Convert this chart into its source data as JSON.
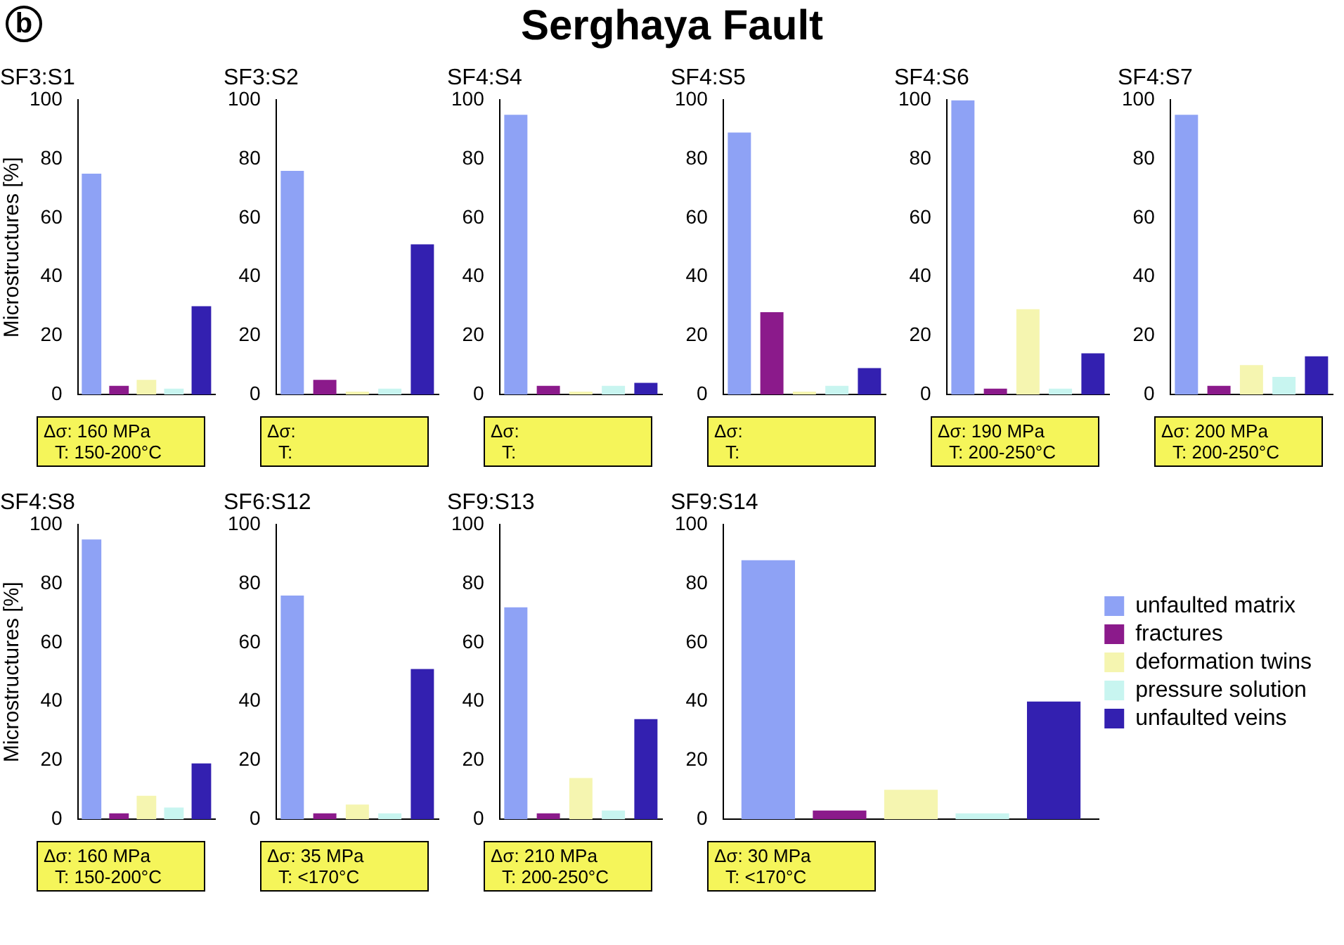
{
  "chart_data": [
    {
      "type": "other",
      "title": "Serghaya Fault",
      "annotations": [
        "b"
      ]
    },
    {
      "type": "bar",
      "title": "SF3:S1",
      "ylabel": "Microstructures [%]",
      "categories": [
        null,
        null,
        null,
        null,
        null
      ],
      "values": [
        75,
        3,
        5,
        2,
        30
      ],
      "colors": [
        "#8ea2f5",
        "#8b1a8b",
        "#f5f5b0",
        "#c8f5f0",
        "#3320b0"
      ],
      "ylim": [
        0,
        100
      ],
      "yticks": [
        0,
        20,
        40,
        60,
        80,
        100
      ],
      "annotations": [
        "Δσ: 160 MPa",
        "T: 150-200°C"
      ]
    },
    {
      "type": "bar",
      "title": "SF3:S2",
      "categories": [
        null,
        null,
        null,
        null,
        null
      ],
      "values": [
        76,
        5,
        1,
        2,
        51
      ],
      "colors": [
        "#8ea2f5",
        "#8b1a8b",
        "#f5f5b0",
        "#c8f5f0",
        "#3320b0"
      ],
      "ylim": [
        0,
        100
      ],
      "yticks": [
        0,
        20,
        40,
        60,
        80,
        100
      ],
      "annotations": [
        "Δσ:",
        "T:"
      ]
    },
    {
      "type": "bar",
      "title": "SF4:S4",
      "categories": [
        null,
        null,
        null,
        null,
        null
      ],
      "values": [
        95,
        3,
        1,
        3,
        4
      ],
      "colors": [
        "#8ea2f5",
        "#8b1a8b",
        "#f5f5b0",
        "#c8f5f0",
        "#3320b0"
      ],
      "ylim": [
        0,
        100
      ],
      "yticks": [
        0,
        20,
        40,
        60,
        80,
        100
      ],
      "annotations": [
        "Δσ:",
        "T:"
      ]
    },
    {
      "type": "bar",
      "title": "SF4:S5",
      "categories": [
        null,
        null,
        null,
        null,
        null
      ],
      "values": [
        89,
        28,
        1,
        3,
        9
      ],
      "colors": [
        "#8ea2f5",
        "#8b1a8b",
        "#f5f5b0",
        "#c8f5f0",
        "#3320b0"
      ],
      "ylim": [
        0,
        100
      ],
      "yticks": [
        0,
        20,
        40,
        60,
        80,
        100
      ],
      "annotations": [
        "Δσ:",
        "T:"
      ]
    },
    {
      "type": "bar",
      "title": "SF4:S6",
      "categories": [
        null,
        null,
        null,
        null,
        null
      ],
      "values": [
        100,
        2,
        29,
        2,
        14
      ],
      "colors": [
        "#8ea2f5",
        "#8b1a8b",
        "#f5f5b0",
        "#c8f5f0",
        "#3320b0"
      ],
      "ylim": [
        0,
        100
      ],
      "yticks": [
        0,
        20,
        40,
        60,
        80,
        100
      ],
      "annotations": [
        "Δσ: 190 MPa",
        "T: 200-250°C"
      ]
    },
    {
      "type": "bar",
      "title": "SF4:S7",
      "categories": [
        null,
        null,
        null,
        null,
        null
      ],
      "values": [
        95,
        3,
        10,
        6,
        13
      ],
      "colors": [
        "#8ea2f5",
        "#8b1a8b",
        "#f5f5b0",
        "#c8f5f0",
        "#3320b0"
      ],
      "ylim": [
        0,
        100
      ],
      "yticks": [
        0,
        20,
        40,
        60,
        80,
        100
      ],
      "annotations": [
        "Δσ: 200 MPa",
        "T: 200-250°C"
      ]
    },
    {
      "type": "bar",
      "title": "SF4:S8",
      "ylabel": "Microstructures [%]",
      "categories": [
        null,
        null,
        null,
        null,
        null
      ],
      "values": [
        95,
        2,
        8,
        4,
        19
      ],
      "colors": [
        "#8ea2f5",
        "#8b1a8b",
        "#f5f5b0",
        "#c8f5f0",
        "#3320b0"
      ],
      "ylim": [
        0,
        100
      ],
      "yticks": [
        0,
        20,
        40,
        60,
        80,
        100
      ],
      "annotations": [
        "Δσ: 160 MPa",
        "T: 150-200°C"
      ]
    },
    {
      "type": "bar",
      "title": "SF6:S12",
      "categories": [
        null,
        null,
        null,
        null,
        null
      ],
      "values": [
        76,
        2,
        5,
        2,
        51
      ],
      "colors": [
        "#8ea2f5",
        "#8b1a8b",
        "#f5f5b0",
        "#c8f5f0",
        "#3320b0"
      ],
      "ylim": [
        0,
        100
      ],
      "yticks": [
        0,
        20,
        40,
        60,
        80,
        100
      ],
      "annotations": [
        "Δσ: 35 MPa",
        "T: <170°C"
      ]
    },
    {
      "type": "bar",
      "title": "SF9:S13",
      "categories": [
        null,
        null,
        null,
        null,
        null
      ],
      "values": [
        72,
        2,
        14,
        3,
        34
      ],
      "colors": [
        "#8ea2f5",
        "#8b1a8b",
        "#f5f5b0",
        "#c8f5f0",
        "#3320b0"
      ],
      "ylim": [
        0,
        100
      ],
      "yticks": [
        0,
        20,
        40,
        60,
        80,
        100
      ],
      "annotations": [
        "Δσ: 210 MPa",
        "T: 200-250°C"
      ]
    },
    {
      "type": "bar",
      "title": "SF9:S14",
      "categories": [
        null
      ],
      "ylim": [
        0,
        100
      ],
      "yticks": [
        0,
        20,
        40,
        60,
        80,
        100
      ],
      "legend": "right",
      "annotations": [
        "Δσ: 30 MPa",
        "T: <170°C"
      ],
      "series": [
        {
          "name": "unfaulted matrix",
          "color": "#8ea2f5",
          "values": [
            88
          ]
        },
        {
          "name": "fractures",
          "color": "#8b1a8b",
          "values": [
            3
          ]
        },
        {
          "name": "deformation twins",
          "color": "#f5f5b0",
          "values": [
            10
          ]
        },
        {
          "name": "pressure solution",
          "color": "#c8f5f0",
          "values": [
            2
          ]
        },
        {
          "name": "unfaulted veins",
          "color": "#3320b0",
          "values": [
            40
          ]
        }
      ]
    }
  ]
}
